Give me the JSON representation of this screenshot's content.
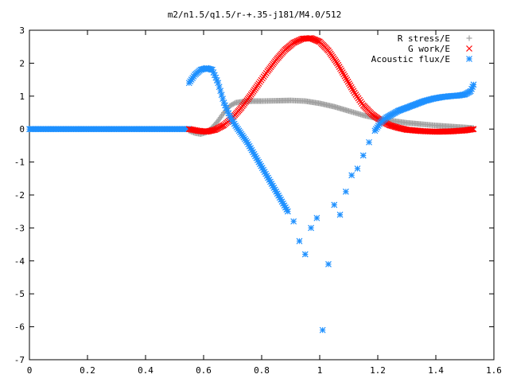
{
  "chart_data": {
    "type": "scatter",
    "title": "m2/n1.5/q1.5/r-+.35-j181/M4.0/512",
    "xlabel": "",
    "ylabel": "",
    "xlim": [
      0,
      1.6
    ],
    "ylim": [
      -7,
      3
    ],
    "x_ticks": [
      "0",
      "0.2",
      "0.4",
      "0.6",
      "0.8",
      "1",
      "1.2",
      "1.4",
      "1.6"
    ],
    "y_ticks": [
      "3",
      "2",
      "1",
      "0",
      "-1",
      "-2",
      "-3",
      "-4",
      "-5",
      "-6",
      "-7"
    ],
    "grid": false,
    "legend_position": "top-right",
    "series": [
      {
        "name": "R stress/E",
        "marker": "plus",
        "color": "#a0a0a0",
        "x": [
          0.55,
          0.57,
          0.59,
          0.61,
          0.63,
          0.65,
          0.67,
          0.69,
          0.71,
          0.74,
          0.77,
          0.8,
          0.85,
          0.9,
          0.95,
          1.0,
          1.05,
          1.1,
          1.15,
          1.2,
          1.25,
          1.3,
          1.35,
          1.4,
          1.45,
          1.5,
          1.53
        ],
        "y": [
          -0.05,
          -0.12,
          -0.15,
          -0.1,
          0.05,
          0.25,
          0.5,
          0.7,
          0.8,
          0.84,
          0.85,
          0.85,
          0.86,
          0.87,
          0.85,
          0.78,
          0.68,
          0.55,
          0.42,
          0.32,
          0.25,
          0.19,
          0.15,
          0.11,
          0.08,
          0.05,
          0.03
        ]
      },
      {
        "name": "G work/E",
        "marker": "cross",
        "color": "#ff0000",
        "x": [
          0.55,
          0.58,
          0.61,
          0.64,
          0.67,
          0.7,
          0.73,
          0.76,
          0.79,
          0.82,
          0.85,
          0.88,
          0.91,
          0.94,
          0.97,
          1.0,
          1.03,
          1.06,
          1.09,
          1.12,
          1.15,
          1.18,
          1.21,
          1.24,
          1.27,
          1.3,
          1.35,
          1.4,
          1.45,
          1.5,
          1.53
        ],
        "y": [
          0.0,
          -0.05,
          -0.08,
          -0.02,
          0.12,
          0.35,
          0.65,
          1.0,
          1.38,
          1.75,
          2.1,
          2.4,
          2.62,
          2.74,
          2.76,
          2.65,
          2.38,
          2.0,
          1.55,
          1.1,
          0.72,
          0.45,
          0.26,
          0.12,
          0.04,
          -0.02,
          -0.06,
          -0.08,
          -0.07,
          -0.04,
          0.0
        ]
      },
      {
        "name": "Acoustic flux/E",
        "marker": "star",
        "color": "#1e90ff",
        "x": [
          0.55,
          0.57,
          0.59,
          0.61,
          0.63,
          0.65,
          0.67,
          0.69,
          0.71,
          0.73,
          0.75,
          0.77,
          0.79,
          0.81,
          0.83,
          0.85,
          0.87,
          0.89,
          0.91,
          0.93,
          0.95,
          0.97,
          0.99,
          1.01,
          1.03,
          1.05,
          1.07,
          1.09,
          1.11,
          1.13,
          1.15,
          1.17,
          1.19,
          1.21,
          1.23,
          1.25,
          1.27,
          1.3,
          1.33,
          1.36,
          1.39,
          1.42,
          1.45,
          1.48,
          1.5,
          1.52,
          1.53
        ],
        "y": [
          1.4,
          1.65,
          1.8,
          1.85,
          1.8,
          1.4,
          0.8,
          0.4,
          0.1,
          -0.15,
          -0.4,
          -0.7,
          -1.0,
          -1.3,
          -1.6,
          -1.9,
          -2.2,
          -2.5,
          -2.8,
          -3.4,
          -3.8,
          -3.0,
          -2.7,
          -6.1,
          -4.1,
          -2.3,
          -2.6,
          -1.9,
          -1.4,
          -1.2,
          -0.8,
          -0.4,
          -0.05,
          0.2,
          0.35,
          0.45,
          0.55,
          0.65,
          0.75,
          0.85,
          0.92,
          0.97,
          1.0,
          1.02,
          1.05,
          1.15,
          1.35
        ]
      }
    ],
    "zero_line_series": {
      "x_start": 0,
      "x_end": 0.55,
      "y": 0
    }
  }
}
